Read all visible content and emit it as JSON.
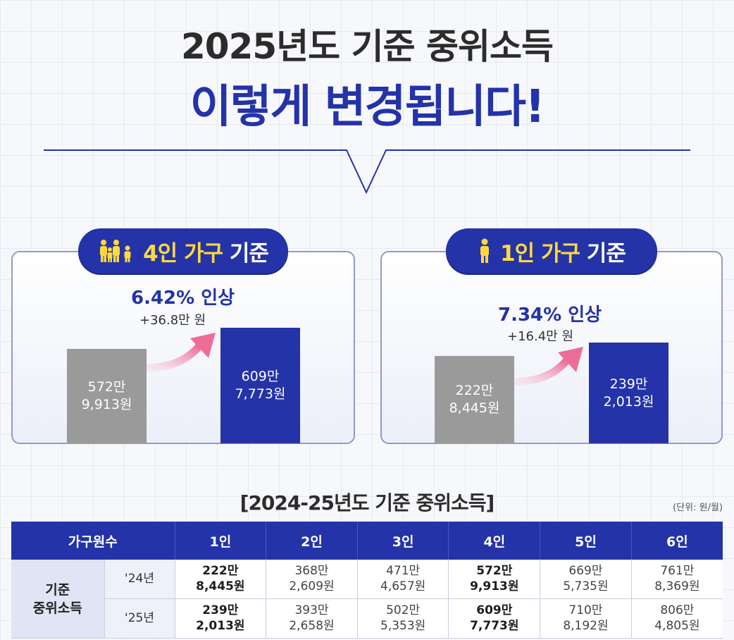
{
  "header": {
    "title_line1": "2025년도 기준 중위소득",
    "title_line2": "이렇게 변경됩니다!"
  },
  "cards": [
    {
      "label": "4인 가구 기준",
      "label_highlight": "4인 가구",
      "label_rest": "기준",
      "icon": "family-icon",
      "increase_pct": "6.42%",
      "increase_suffix": "인상",
      "delta": "+36.8만 원",
      "old_line1": "572만",
      "old_line2": "9,913원",
      "new_line1": "609만",
      "new_line2": "7,773원"
    },
    {
      "label": "1인 가구 기준",
      "label_highlight": "1인 가구",
      "label_rest": "기준",
      "icon": "person-icon",
      "increase_pct": "7.34%",
      "increase_suffix": "인상",
      "delta": "+16.4만 원",
      "old_line1": "222만",
      "old_line2": "8,445원",
      "new_line1": "239만",
      "new_line2": "2,013원"
    }
  ],
  "table": {
    "title": "[2024-25년도 기준 중위소득]",
    "unit": "(단위: 원/월)",
    "header_first": "가구원수",
    "columns": [
      "1인",
      "2인",
      "3인",
      "4인",
      "5인",
      "6인"
    ],
    "row_group_line1": "기준",
    "row_group_line2": "중위소득",
    "rows": [
      {
        "year": "'24년",
        "cells": [
          [
            "222만",
            "8,445원"
          ],
          [
            "368만",
            "2,609원"
          ],
          [
            "471만",
            "4,657원"
          ],
          [
            "572만",
            "9,913원"
          ],
          [
            "669만",
            "5,735원"
          ],
          [
            "761만",
            "8,369원"
          ]
        ]
      },
      {
        "year": "'25년",
        "cells": [
          [
            "239만",
            "2,013원"
          ],
          [
            "393만",
            "2,658원"
          ],
          [
            "502만",
            "5,353원"
          ],
          [
            "609만",
            "7,773원"
          ],
          [
            "710만",
            "8,192원"
          ],
          [
            "806만",
            "4,805원"
          ]
        ]
      }
    ]
  },
  "colors": {
    "brand": "#2433a8",
    "old_bar": "#9a9a9a",
    "highlight": "#ffd93b",
    "arrow": "#ee6d96"
  },
  "chart_data": [
    {
      "type": "bar",
      "title": "4인 가구 기준",
      "categories": [
        "'24년",
        "'25년"
      ],
      "values": [
        5729913,
        6097773
      ],
      "annotations": [
        "6.42% 인상",
        "+36.8만 원"
      ]
    },
    {
      "type": "bar",
      "title": "1인 가구 기준",
      "categories": [
        "'24년",
        "'25년"
      ],
      "values": [
        2228445,
        2392013
      ],
      "annotations": [
        "7.34% 인상",
        "+16.4만 원"
      ]
    }
  ]
}
